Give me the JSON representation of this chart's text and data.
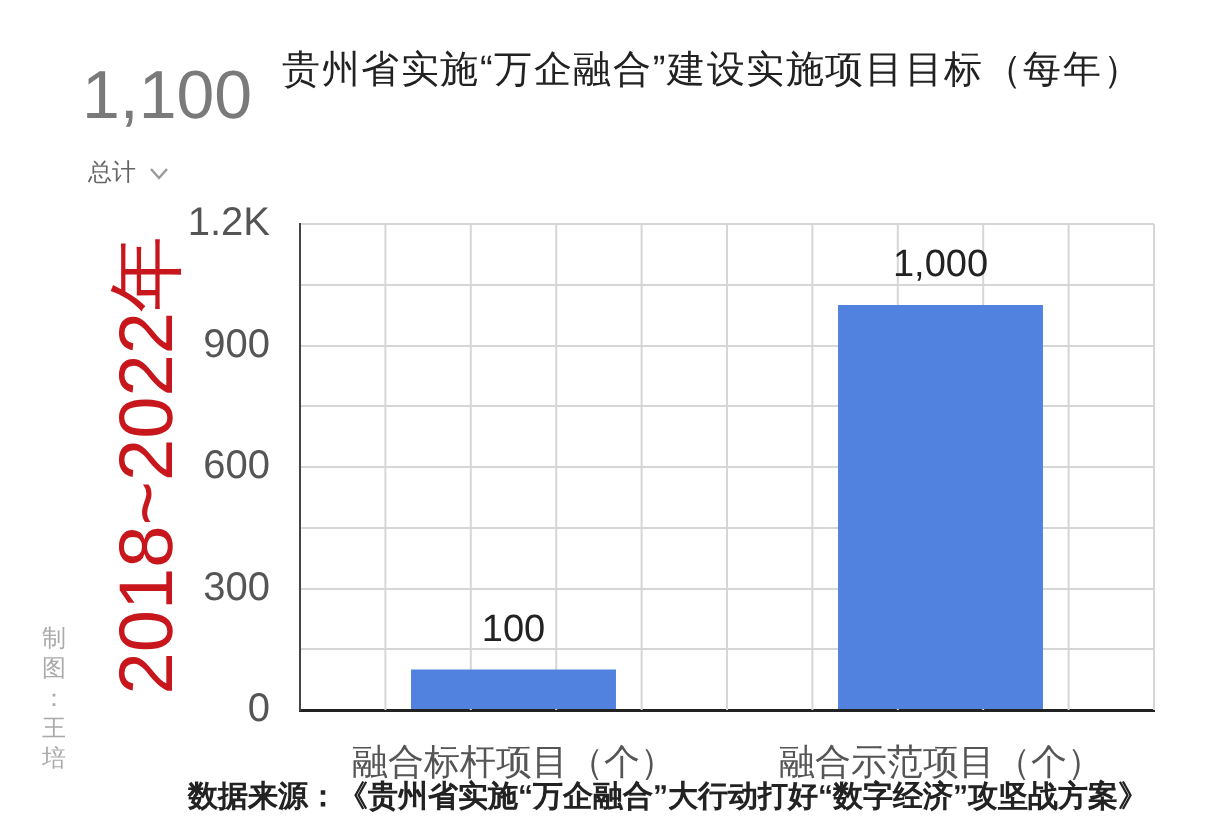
{
  "chart_data": {
    "type": "bar",
    "title": "贵州省实施“万企融合”建设实施项目目标（每年）",
    "categories": [
      "融合标杆项目（个）",
      "融合示范项目（个）"
    ],
    "values": [
      100,
      1000
    ],
    "color": "#5282e0",
    "value_labels": [
      "100",
      "1,000"
    ],
    "ylim": [
      0,
      1200
    ],
    "yticks": [
      0,
      {
        "value": 150,
        "label": null
      },
      300,
      {
        "value": 450,
        "label": null
      },
      600,
      {
        "value": 750,
        "label": null
      },
      900,
      {
        "value": 1050,
        "label": null
      },
      {
        "value": 1200,
        "label": "1.2K"
      }
    ],
    "grid": true,
    "annotations": [
      "1,100",
      "总计",
      "2018~2022年",
      "制图：王培",
      "数据来源：《贵州省实施“万企融合”大行动打好“数字经济”攻坚战方案》"
    ]
  }
}
